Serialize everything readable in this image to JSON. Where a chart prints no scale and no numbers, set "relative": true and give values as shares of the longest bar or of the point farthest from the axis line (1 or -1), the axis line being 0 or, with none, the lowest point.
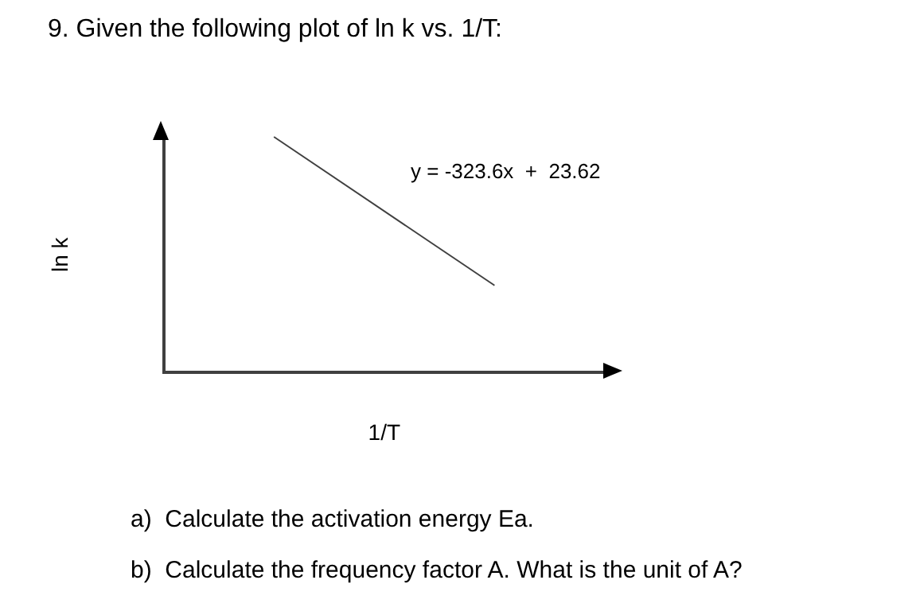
{
  "chart_data": {
    "type": "line",
    "title": "9. Given the following plot of ln k vs. 1/T:",
    "xlabel": "1/T",
    "ylabel": "ln k",
    "relative": true,
    "categories": [
      null,
      null
    ],
    "marker": "none",
    "line_style": "solid",
    "series": [
      {
        "color": "#404040",
        "values": [
          1,
          0.37
        ]
      }
    ],
    "annotations": [
      "y = -323.6x  +  23.62",
      "a)  Calculate the activation energy Ea.",
      "b)  Calculate the frequency factor A. What is the unit of A?"
    ]
  }
}
